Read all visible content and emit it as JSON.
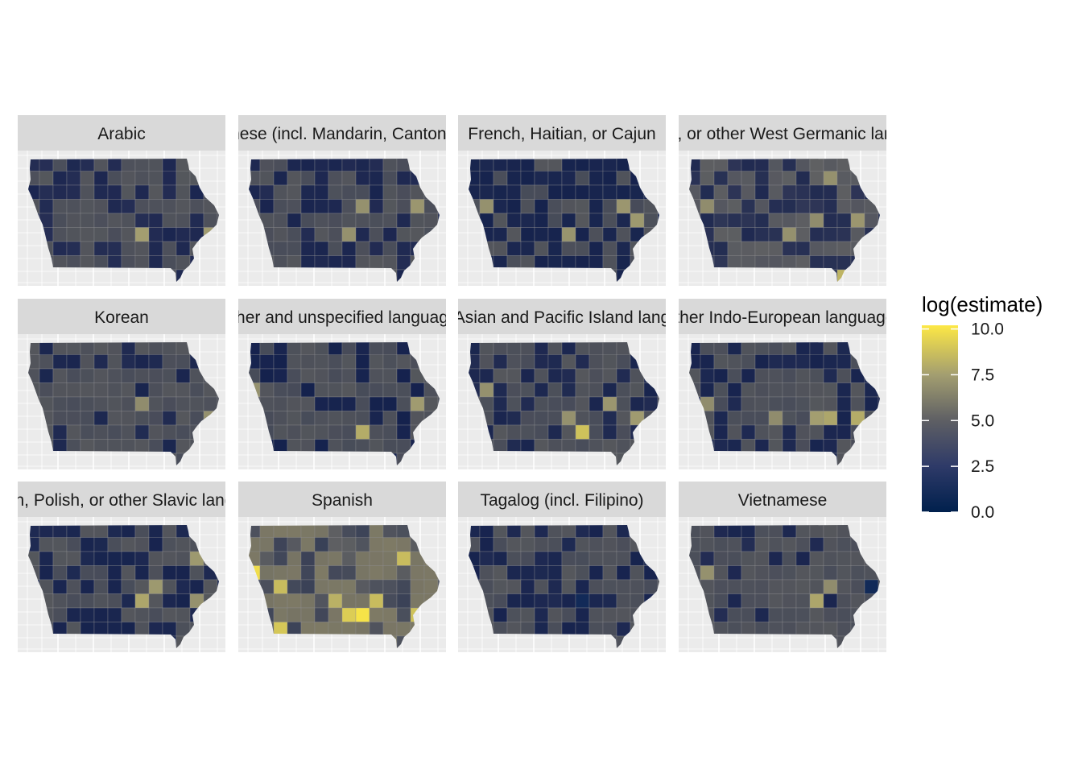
{
  "chart_data": {
    "type": "heatmap",
    "subtype": "choropleth-facets",
    "region": "Iowa counties",
    "grid": {
      "rows": 3,
      "cols": 4
    },
    "panels": [
      {
        "title": "Arabic",
        "colors": {
          "base": "#55575c",
          "low": "#272f55"
        },
        "low_share": 0.38,
        "seed": 11,
        "high_cells": [
          {
            "col": 8,
            "row": 5,
            "value": 7.5
          },
          {
            "col": 13,
            "row": 5,
            "value": 7.4
          }
        ]
      },
      {
        "title": "Chinese (incl. Mandarin, Cantonese)",
        "colors": {
          "base": "#55575c",
          "low": "#232c53"
        },
        "low_share": 0.3,
        "seed": 23,
        "high_cells": [
          {
            "col": 8,
            "row": 3,
            "value": 7.0
          },
          {
            "col": 12,
            "row": 3,
            "value": 7.2
          },
          {
            "col": 7,
            "row": 5,
            "value": 7.0
          }
        ]
      },
      {
        "title": "French, Haitian, or Cajun",
        "colors": {
          "base": "#55575c",
          "low": "#1c2850"
        },
        "low_share": 0.55,
        "seed": 37,
        "high_cells": [
          {
            "col": 1,
            "row": 3,
            "value": 7.0
          },
          {
            "col": 11,
            "row": 3,
            "value": 7.2
          },
          {
            "col": 7,
            "row": 5,
            "value": 7.1
          },
          {
            "col": 12,
            "row": 4,
            "value": 7.3
          }
        ]
      },
      {
        "title": "German, or other West Germanic languages",
        "colors": {
          "base": "#5f6062",
          "low": "#303757"
        },
        "low_share": 0.45,
        "seed": 41,
        "high_cells": [
          {
            "col": 10,
            "row": 1,
            "value": 7.0
          },
          {
            "col": 12,
            "row": 4,
            "value": 7.2
          },
          {
            "col": 11,
            "row": 8,
            "value": 8.3
          },
          {
            "col": 1,
            "row": 3,
            "value": 6.8
          },
          {
            "col": 7,
            "row": 5,
            "value": 7.0
          },
          {
            "col": 9,
            "row": 4,
            "value": 6.8
          }
        ]
      },
      {
        "title": "Korean",
        "colors": {
          "base": "#55575c",
          "low": "#222c52"
        },
        "low_share": 0.14,
        "seed": 53,
        "high_cells": [
          {
            "col": 8,
            "row": 4,
            "value": 6.8
          },
          {
            "col": 13,
            "row": 5,
            "value": 7.0
          }
        ]
      },
      {
        "title": "Other and unspecified languages",
        "colors": {
          "base": "#55575c",
          "low": "#1a2650"
        },
        "low_share": 0.34,
        "seed": 61,
        "high_cells": [
          {
            "col": 0,
            "row": 3,
            "value": 7.0
          },
          {
            "col": 8,
            "row": 6,
            "value": 8.0
          },
          {
            "col": 12,
            "row": 4,
            "value": 7.4
          },
          {
            "col": 13,
            "row": 8,
            "value": 1.0
          }
        ]
      },
      {
        "title": "Other Asian and Pacific Island languages",
        "colors": {
          "base": "#55575c",
          "low": "#222c52"
        },
        "low_share": 0.38,
        "seed": 71,
        "high_cells": [
          {
            "col": 8,
            "row": 6,
            "value": 8.8
          },
          {
            "col": 10,
            "row": 4,
            "value": 7.2
          },
          {
            "col": 12,
            "row": 5,
            "value": 7.4
          },
          {
            "col": 1,
            "row": 3,
            "value": 7.0
          },
          {
            "col": 7,
            "row": 5,
            "value": 7.0
          }
        ]
      },
      {
        "title": "Other Indo-European languages",
        "colors": {
          "base": "#55575c",
          "low": "#1f2a52"
        },
        "low_share": 0.45,
        "seed": 83,
        "high_cells": [
          {
            "col": 9,
            "row": 5,
            "value": 7.5
          },
          {
            "col": 10,
            "row": 5,
            "value": 7.8
          },
          {
            "col": 12,
            "row": 5,
            "value": 8.0
          },
          {
            "col": 6,
            "row": 5,
            "value": 6.8
          },
          {
            "col": 14,
            "row": 6,
            "value": 7.0
          },
          {
            "col": 1,
            "row": 4,
            "value": 6.8
          }
        ]
      },
      {
        "title": "Russian, Polish, or other Slavic languages",
        "colors": {
          "base": "#55575c",
          "low": "#1f2a52"
        },
        "low_share": 0.5,
        "seed": 97,
        "high_cells": [
          {
            "col": 9,
            "row": 4,
            "value": 7.3
          },
          {
            "col": 8,
            "row": 5,
            "value": 7.8
          },
          {
            "col": 12,
            "row": 2,
            "value": 7.3
          },
          {
            "col": 12,
            "row": 5,
            "value": 7.0
          }
        ]
      },
      {
        "title": "Spanish",
        "colors": {
          "base": "#7e7a65",
          "low": "#5f6062"
        },
        "low_share": 0.35,
        "seed": 101,
        "high_cells": [
          {
            "col": 0,
            "row": 3,
            "value": 9.8
          },
          {
            "col": 8,
            "row": 6,
            "value": 10.0
          },
          {
            "col": 7,
            "row": 6,
            "value": 9.2
          },
          {
            "col": 2,
            "row": 7,
            "value": 9.0
          },
          {
            "col": 13,
            "row": 7,
            "value": 9.0
          },
          {
            "col": 12,
            "row": 6,
            "value": 8.8
          },
          {
            "col": 2,
            "row": 4,
            "value": 8.6
          },
          {
            "col": 11,
            "row": 2,
            "value": 8.6
          },
          {
            "col": 14,
            "row": 6,
            "value": 8.5
          },
          {
            "col": 9,
            "row": 5,
            "value": 8.6
          },
          {
            "col": 6,
            "row": 5,
            "value": 8.2
          },
          {
            "col": 3,
            "row": 8,
            "value": 8.5
          }
        ]
      },
      {
        "title": "Tagalog (incl. Filipino)",
        "colors": {
          "base": "#55575c",
          "low": "#1f2a52"
        },
        "low_share": 0.4,
        "seed": 113,
        "high_cells": [
          {
            "col": 8,
            "row": 5,
            "value": 1.0
          }
        ]
      },
      {
        "title": "Vietnamese",
        "colors": {
          "base": "#55575c",
          "low": "#252e54"
        },
        "low_share": 0.14,
        "seed": 127,
        "high_cells": [
          {
            "col": 1,
            "row": 3,
            "value": 7.0
          },
          {
            "col": 9,
            "row": 5,
            "value": 7.8
          },
          {
            "col": 10,
            "row": 4,
            "value": 6.8
          },
          {
            "col": 14,
            "row": 6,
            "value": 7.2
          },
          {
            "col": 13,
            "row": 4,
            "value": 1.0
          }
        ]
      }
    ],
    "legend": {
      "title": "log(estimate)",
      "ticks": [
        {
          "value": 0.0,
          "label": "0.0"
        },
        {
          "value": 2.5,
          "label": "2.5"
        },
        {
          "value": 5.0,
          "label": "5.0"
        },
        {
          "value": 7.5,
          "label": "7.5"
        },
        {
          "value": 10.0,
          "label": "10.0"
        }
      ],
      "range": [
        0,
        10.2
      ],
      "stops": [
        {
          "value": 0.0,
          "color": "#00204d"
        },
        {
          "value": 2.5,
          "color": "#2e3a68"
        },
        {
          "value": 5.0,
          "color": "#5e5f64"
        },
        {
          "value": 7.5,
          "color": "#a39e70"
        },
        {
          "value": 10.2,
          "color": "#fde845"
        }
      ]
    },
    "panel_background": "#ebebeb",
    "strip_background": "#d9d9d9",
    "grid_line_color": "#ffffff"
  }
}
